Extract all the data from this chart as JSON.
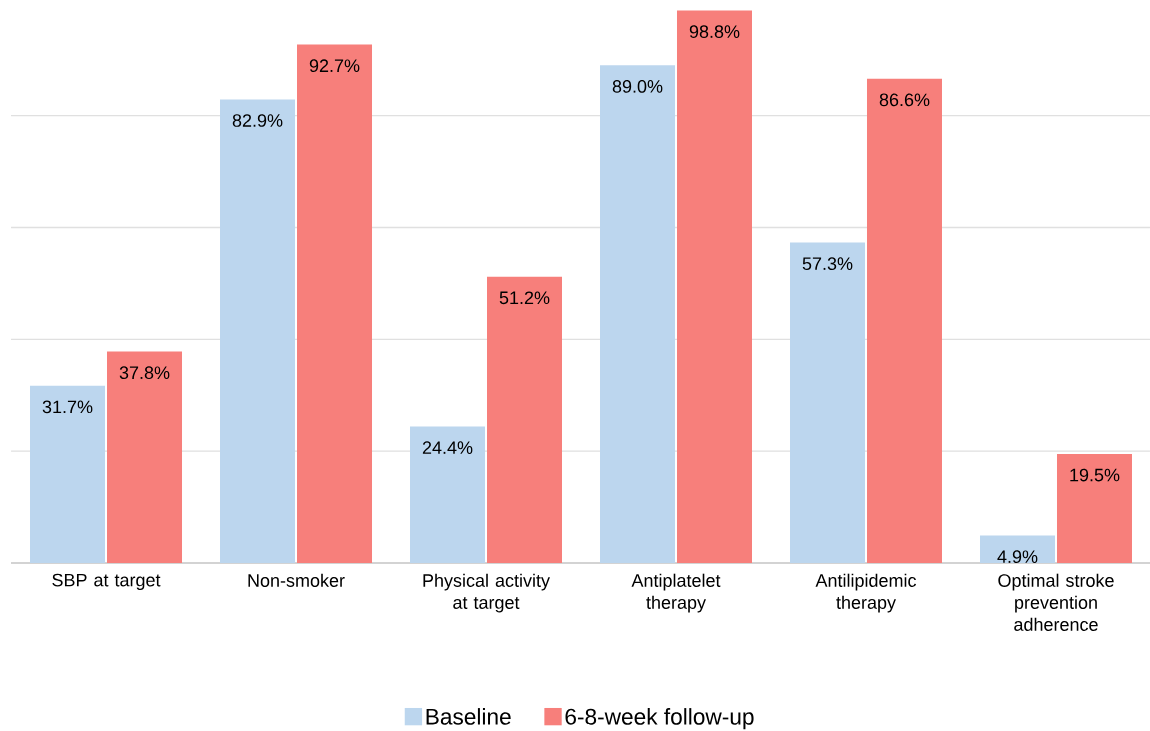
{
  "chart_data": {
    "type": "bar",
    "categories": [
      "SBP at target",
      "Non-smoker",
      "Physical activity at target",
      "Antiplatelet therapy",
      "Antilipidemic therapy",
      "Optimal stroke prevention adherence"
    ],
    "series": [
      {
        "name": "Baseline",
        "color": "#bcd6ee",
        "values": [
          31.7,
          82.9,
          24.4,
          89.0,
          57.3,
          4.9
        ],
        "value_labels": [
          "31.7%",
          "82.9%",
          "24.4%",
          "89.0%",
          "57.3%",
          "4.9%"
        ]
      },
      {
        "name": "6-8-week follow-up",
        "color": "#f77f7b",
        "values": [
          37.8,
          92.7,
          51.2,
          98.8,
          86.6,
          19.5
        ],
        "value_labels": [
          "37.8%",
          "92.7%",
          "51.2%",
          "98.8%",
          "86.6%",
          "19.5%"
        ]
      }
    ],
    "grid": "y",
    "tick_labels": "x",
    "legend": "bottom"
  }
}
